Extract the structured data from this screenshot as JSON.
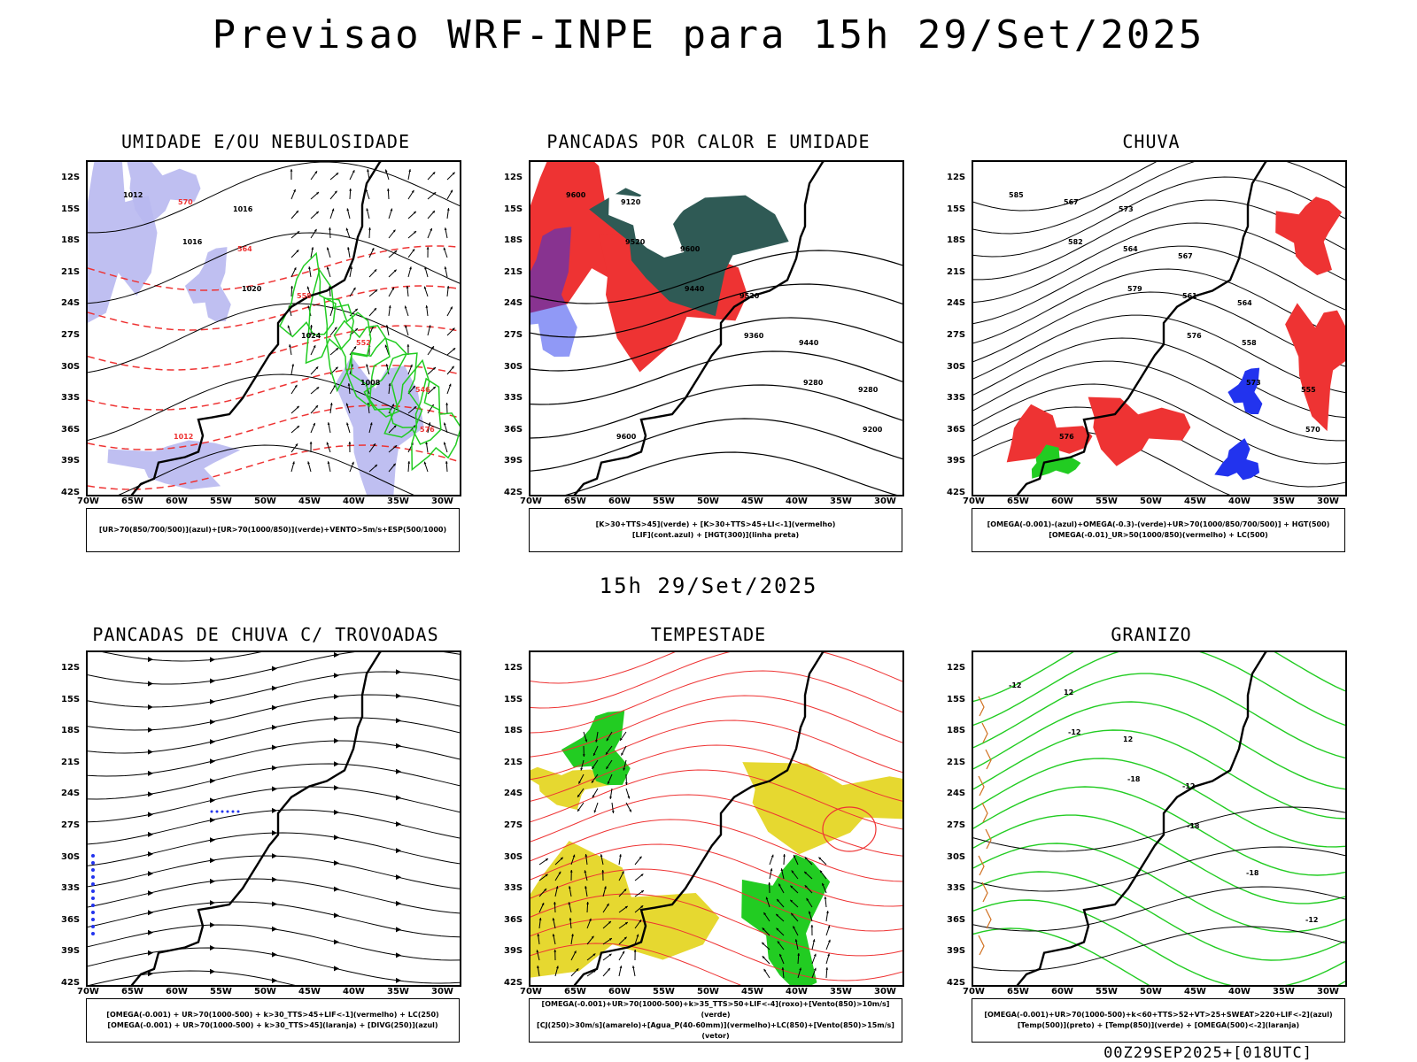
{
  "title": "Previsao WRF-INPE  para 15h 29/Set/2025",
  "mid_time": "15h 29/Set/2025",
  "footer": "00Z29SEP2025+[018UTC]",
  "lat_labels": [
    "12S",
    "15S",
    "18S",
    "21S",
    "24S",
    "27S",
    "30S",
    "33S",
    "36S",
    "39S",
    "42S"
  ],
  "lon_labels": [
    "70W",
    "65W",
    "60W",
    "55W",
    "50W",
    "45W",
    "40W",
    "35W",
    "30W"
  ],
  "panels": [
    {
      "title": "UMIDADE E/OU NEBULOSIDADE",
      "legend": [
        "[UR>70(850/700/500)](azul)+[UR>70(1000/850)](verde)+VENTO>5m/s+ESP(500/1000)"
      ],
      "labels": [
        "1012",
        "1016",
        "1020",
        "1024",
        "1008",
        "576",
        "570",
        "564",
        "558",
        "552",
        "546",
        "1012",
        "1016"
      ]
    },
    {
      "title": "PANCADAS POR CALOR E UMIDADE",
      "legend": [
        "[K>30+TTS>45](verde) + [K>30+TTS>45+LI<-1](vermelho)",
        "[LIF](cont.azul) + [HGT(300)](linha preta)"
      ],
      "labels": [
        "9600",
        "9520",
        "9440",
        "9360",
        "9280",
        "9200",
        "9120",
        "9600",
        "9520",
        "9440",
        "9280",
        "9600"
      ]
    },
    {
      "title": "CHUVA",
      "legend": [
        "[OMEGA(-0.001)-(azul)+OMEGA(-0.3)-(verde)+UR>70(1000/850/700/500)] + HGT(500)",
        "[OMEGA(-0.01)_UR>50(1000/850)(vermelho) + LC(500)"
      ],
      "labels": [
        "585",
        "582",
        "579",
        "576",
        "573",
        "570",
        "567",
        "564",
        "561",
        "558",
        "555",
        "576",
        "573",
        "567",
        "564"
      ]
    },
    {
      "title": "PANCADAS DE CHUVA C/ TROVOADAS",
      "legend": [
        "[OMEGA(-0.001) + UR>70(1000-500) + k>30_TTS>45+LIF<-1](vermelho) + LC(250)",
        "[OMEGA(-0.001) + UR>70(1000-500) + k>30_TTS>45](laranja) + [DIVG(250)](azul)"
      ],
      "labels": []
    },
    {
      "title": "TEMPESTADE",
      "legend": [
        "[OMEGA(-0.001)+UR>70(1000-500)+k>35_TTS>50+LIF<-4](roxo)+[Vento(850)>10m/s](verde)",
        "[CJ(250)>30m/s](amarelo)+[Agua_P(40-60mm)](vermelho)+LC(850)+[Vento(850)>15m/s](vetor)"
      ],
      "labels": []
    },
    {
      "title": "GRANIZO",
      "legend": [
        "[OMEGA(-0.001)+UR>70(1000-500)+k<60+TTS>52+VT>25+SWEAT>220+LIF<-2](azul)",
        "[Temp(500)](preto) + [Temp(850)](verde) + [OMEGA(500)<-2](laranja)"
      ],
      "labels": [
        "-12",
        "-12",
        "-18",
        "-18",
        "-18",
        "-12",
        "12",
        "12",
        "-12"
      ]
    }
  ],
  "colors": {
    "blue_humidity": "#b8b8f0",
    "green": "#22cc22",
    "red": "#ee3333",
    "dark_teal": "#2f5a55",
    "yellow": "#e6d830",
    "orange": "#d07020",
    "blue": "#2233ee"
  }
}
